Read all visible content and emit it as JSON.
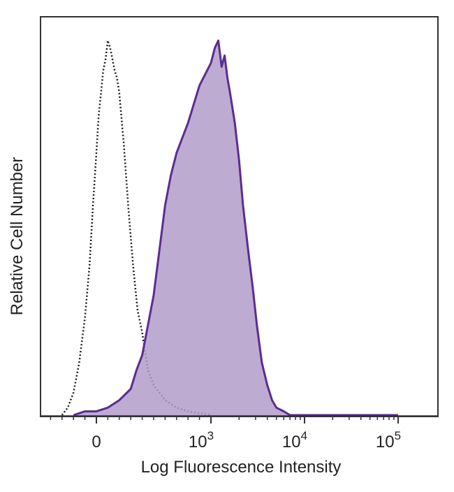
{
  "chart_data": {
    "type": "area",
    "xlabel": "Log Fluorescence Intensity",
    "ylabel": "Relative Cell Number",
    "x_scale": "biexponential",
    "x_ticks": [
      {
        "value": 0,
        "base": "0",
        "exp": ""
      },
      {
        "value": 1000,
        "base": "10",
        "exp": "3"
      },
      {
        "value": 10000,
        "base": "10",
        "exp": "4"
      },
      {
        "value": 100000,
        "base": "10",
        "exp": "5"
      }
    ],
    "ylim": [
      0,
      100
    ],
    "grid": false,
    "series": [
      {
        "style": "dotted-outline",
        "color": "#1a1a1a",
        "points": [
          [
            -300,
            0
          ],
          [
            -250,
            2
          ],
          [
            -200,
            6
          ],
          [
            -150,
            14
          ],
          [
            -100,
            26
          ],
          [
            -60,
            40
          ],
          [
            -30,
            56
          ],
          [
            0,
            70
          ],
          [
            20,
            80
          ],
          [
            40,
            86
          ],
          [
            60,
            92
          ],
          [
            80,
            95
          ],
          [
            100,
            100
          ],
          [
            120,
            98
          ],
          [
            140,
            95
          ],
          [
            160,
            92
          ],
          [
            180,
            90
          ],
          [
            200,
            86
          ],
          [
            240,
            72
          ],
          [
            280,
            55
          ],
          [
            320,
            40
          ],
          [
            360,
            28
          ],
          [
            400,
            22
          ],
          [
            450,
            12
          ],
          [
            500,
            8
          ],
          [
            600,
            4
          ],
          [
            700,
            2
          ],
          [
            800,
            1
          ],
          [
            1000,
            0
          ]
        ]
      },
      {
        "style": "filled",
        "color": "#5b2c91",
        "fill": "#b39cc9",
        "points": [
          [
            -200,
            0
          ],
          [
            -100,
            1
          ],
          [
            0,
            1
          ],
          [
            100,
            2
          ],
          [
            200,
            4
          ],
          [
            300,
            7
          ],
          [
            350,
            12
          ],
          [
            400,
            16
          ],
          [
            450,
            24
          ],
          [
            500,
            32
          ],
          [
            550,
            44
          ],
          [
            600,
            56
          ],
          [
            650,
            64
          ],
          [
            700,
            70
          ],
          [
            800,
            78
          ],
          [
            900,
            88
          ],
          [
            1000,
            94
          ],
          [
            1100,
            98
          ],
          [
            1200,
            100
          ],
          [
            1300,
            93
          ],
          [
            1400,
            96
          ],
          [
            1500,
            90
          ],
          [
            1600,
            86
          ],
          [
            1800,
            78
          ],
          [
            2000,
            68
          ],
          [
            2200,
            56
          ],
          [
            2500,
            44
          ],
          [
            2800,
            34
          ],
          [
            3100,
            24
          ],
          [
            3500,
            14
          ],
          [
            4000,
            8
          ],
          [
            4500,
            4
          ],
          [
            5000,
            2
          ],
          [
            6000,
            1
          ],
          [
            7000,
            0
          ],
          [
            20000,
            0
          ],
          [
            100000,
            0
          ]
        ]
      }
    ]
  }
}
